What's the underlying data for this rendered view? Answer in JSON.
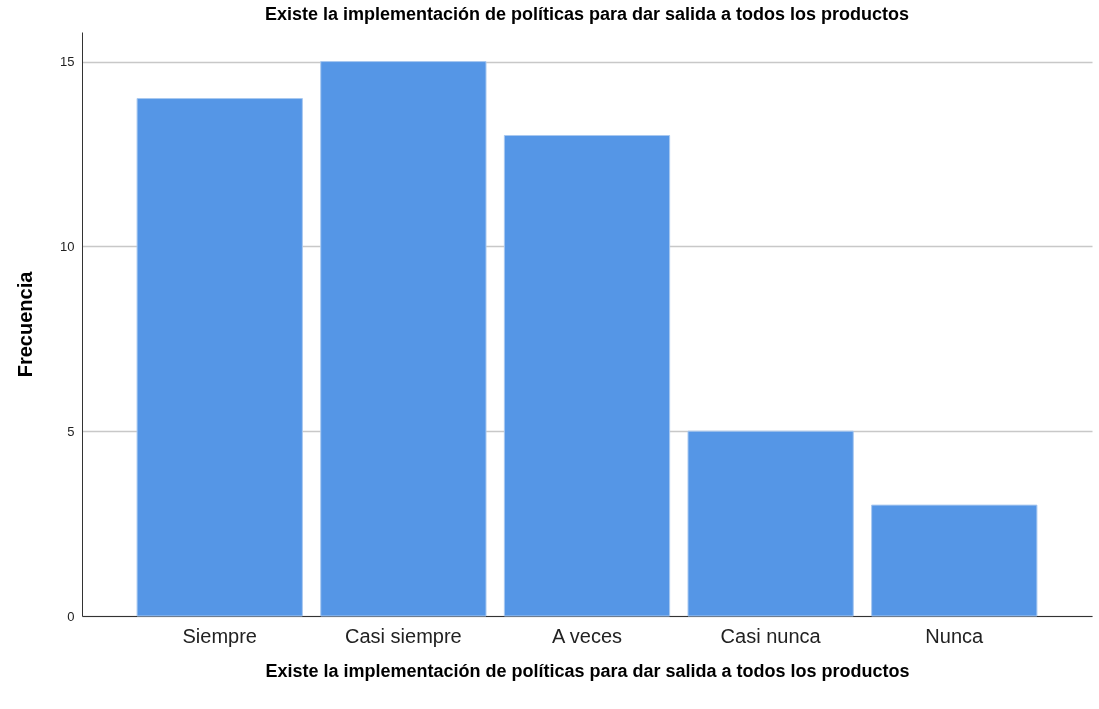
{
  "chart_data": {
    "type": "bar",
    "title": "Existe la implementación de políticas para dar salida a todos los productos",
    "xlabel": "Existe la implementación de políticas para dar salida a todos los productos",
    "ylabel": "Frecuencia",
    "categories": [
      "Siempre",
      "Casi siempre",
      "A veces",
      "Casi nunca",
      "Nunca"
    ],
    "values": [
      14,
      15,
      13,
      5,
      3
    ],
    "color": "#5596e6",
    "ylim": [
      0,
      15.8
    ],
    "yticks": [
      0,
      5,
      10,
      15
    ],
    "grid": "y"
  }
}
